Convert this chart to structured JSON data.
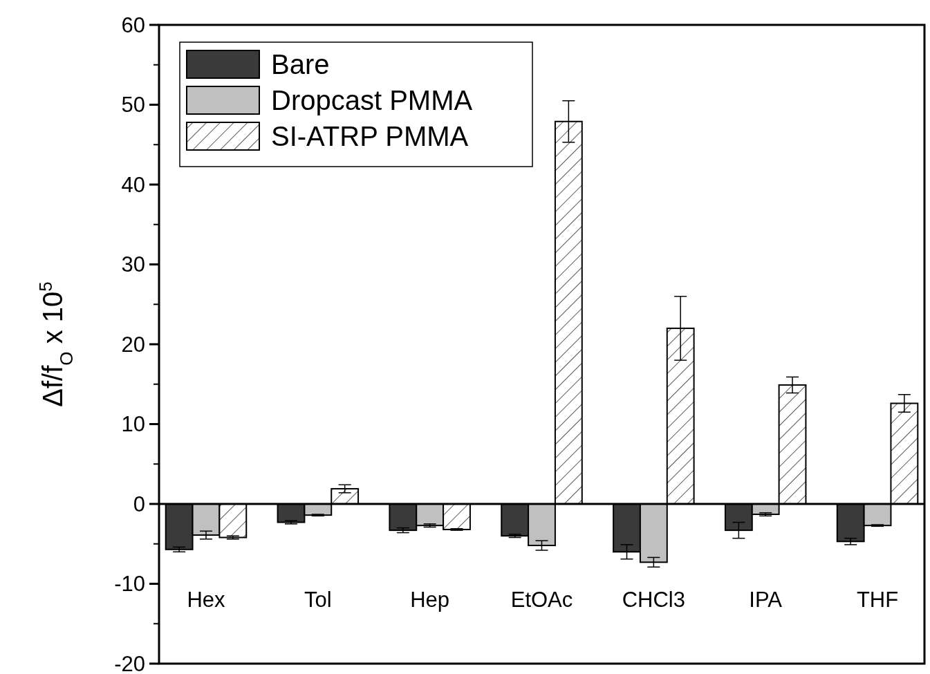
{
  "chart_data": {
    "type": "bar",
    "ylabel": "Δf/f$_{O}$ x 10$^{5}$",
    "categories": [
      "Hex",
      "Tol",
      "Hep",
      "EtOAc",
      "CHCl3",
      "IPA",
      "THF"
    ],
    "series": [
      {
        "name": "Bare",
        "color": "#3a3a3a",
        "values": [
          -5.7,
          -2.3,
          -3.3,
          -4.0,
          -6.0,
          -3.3,
          -4.7
        ],
        "errors": [
          0.3,
          0.2,
          0.3,
          0.2,
          0.9,
          1.0,
          0.4
        ]
      },
      {
        "name": "Dropcast PMMA",
        "color": "#c0c0c0",
        "values": [
          -3.9,
          -1.4,
          -2.7,
          -5.2,
          -7.3,
          -1.3,
          -2.7
        ],
        "errors": [
          0.5,
          0.1,
          0.2,
          0.6,
          0.6,
          0.2,
          0.1
        ]
      },
      {
        "name": "SI-ATRP PMMA",
        "color": "#000000",
        "values": [
          -4.2,
          1.9,
          -3.2,
          47.9,
          22,
          14.9,
          12.6
        ],
        "errors": [
          0.2,
          0.5,
          0.1,
          2.6,
          4,
          1.0,
          1.1
        ]
      }
    ],
    "ylim": [
      -20,
      60
    ],
    "yticks": [
      -20,
      -10,
      0,
      10,
      20,
      30,
      40,
      50,
      60
    ],
    "legend": "top left"
  }
}
